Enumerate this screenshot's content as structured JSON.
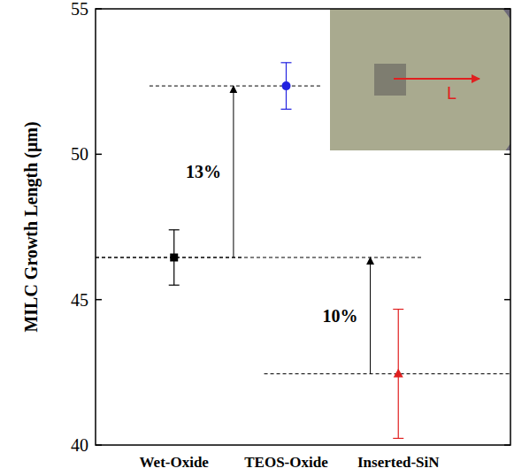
{
  "chart_data": {
    "type": "scatter",
    "y_label": "MILC Growth Length (μm)",
    "categories": [
      "Wet-Oxide",
      "TEOS-Oxide",
      "Inserted-SiN"
    ],
    "series": [
      {
        "color": "#000000",
        "marker": "square",
        "values": [
          46.45,
          null,
          null
        ],
        "errors": [
          0.95,
          null,
          null
        ]
      },
      {
        "color": "#2323e0",
        "marker": "circle",
        "values": [
          null,
          52.35,
          null
        ],
        "errors": [
          null,
          0.8,
          null
        ]
      },
      {
        "color": "#e02020",
        "marker": "triangle",
        "values": [
          null,
          null,
          42.45
        ],
        "errors": [
          null,
          null,
          2.22
        ]
      }
    ],
    "ylim": [
      40,
      55
    ],
    "yticks": [
      40,
      45,
      50,
      55
    ],
    "annotations": [
      {
        "text": "13%",
        "from": 0,
        "to": 1
      },
      {
        "text": "10%",
        "from": 2,
        "to": 0
      }
    ],
    "inset_label": "L"
  }
}
